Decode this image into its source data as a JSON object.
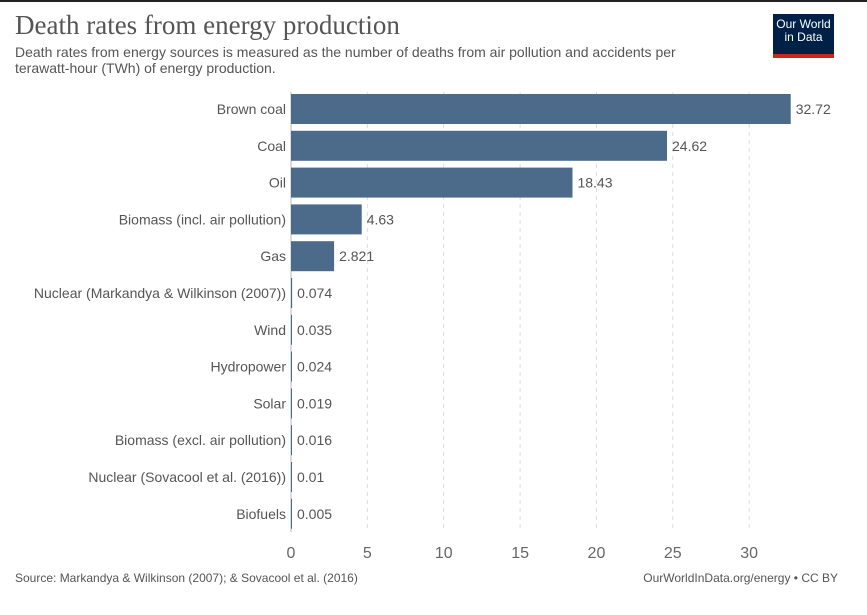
{
  "header": {
    "title": "Death rates from energy production",
    "subtitle": "Death rates from energy sources is measured as the number of deaths from air pollution and accidents per terawatt-hour (TWh) of energy production."
  },
  "logo": {
    "line1": "Our World",
    "line2": "in Data"
  },
  "footer": {
    "source": "Source: Markandya & Wilkinson (2007); & Sovacool et al. (2016)",
    "credit": "OurWorldInData.org/energy • CC BY"
  },
  "colors": {
    "bar": "#4c6a8a",
    "grid": "#dddddd",
    "text": "#555555",
    "logo_bg": "#002147",
    "logo_accent": "#ce261e"
  },
  "chart_data": {
    "type": "bar",
    "orientation": "horizontal",
    "categories": [
      "Brown coal",
      "Coal",
      "Oil",
      "Biomass (incl. air pollution)",
      "Gas",
      "Nuclear (Markandya & Wilkinson (2007))",
      "Wind",
      "Hydropower",
      "Solar",
      "Biomass (excl. air pollution)",
      "Nuclear (Sovacool et al. (2016))",
      "Biofuels"
    ],
    "values": [
      32.72,
      24.62,
      18.43,
      4.63,
      2.821,
      0.074,
      0.035,
      0.024,
      0.019,
      0.016,
      0.01,
      0.005
    ],
    "value_labels": [
      "32.72",
      "24.62",
      "18.43",
      "4.63",
      "2.821",
      "0.074",
      "0.035",
      "0.024",
      "0.019",
      "0.016",
      "0.01",
      "0.005"
    ],
    "xlim": [
      0,
      33
    ],
    "xticks": [
      0,
      5,
      10,
      15,
      20,
      25,
      30
    ],
    "xtick_labels": [
      "0",
      "5",
      "10",
      "15",
      "20",
      "25",
      "30"
    ],
    "grid": true,
    "grid_style": "dashed vertical"
  }
}
